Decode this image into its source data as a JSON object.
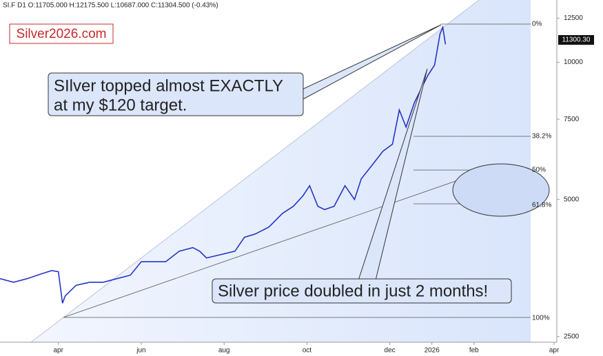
{
  "chart_data": {
    "type": "line",
    "title": "SI.F  D1  O:11705.000 H:12175.500 L:10687.000 C:11304.500 (-0.43%)",
    "logo": "Silver2026.com",
    "price_label": "11300.30",
    "log_scale": true,
    "x": [
      47,
      57,
      67,
      77,
      85,
      90,
      93,
      95,
      103,
      113,
      123,
      133,
      143,
      151,
      159,
      169,
      179,
      189,
      194,
      199,
      209,
      220,
      227,
      235,
      245,
      255,
      263,
      270,
      275,
      281,
      286,
      293,
      301,
      308,
      313,
      321,
      329,
      336,
      341,
      346,
      352,
      357,
      362,
      367,
      371,
      373,
      375
    ],
    "series": [
      {
        "name": "SI.F",
        "color": "#2434c8",
        "values": [
          3350,
          3290,
          3350,
          3430,
          3490,
          3470,
          2960,
          3070,
          3240,
          3290,
          3290,
          3350,
          3410,
          3650,
          3650,
          3650,
          3850,
          3920,
          3850,
          3720,
          3780,
          3850,
          4130,
          4200,
          4350,
          4660,
          4830,
          5090,
          5360,
          4830,
          4750,
          4830,
          5360,
          5000,
          5550,
          5950,
          6380,
          6610,
          7860,
          7210,
          8140,
          8730,
          9360,
          9860,
          11540,
          11940,
          10950
        ]
      }
    ],
    "xlim": [
      47,
      457
    ],
    "xticks": [
      {
        "value": 90,
        "label": "apr"
      },
      {
        "value": 151,
        "label": "jun"
      },
      {
        "value": 212,
        "label": "aug"
      },
      {
        "value": 273,
        "label": "oct"
      },
      {
        "value": 334,
        "label": "dec"
      },
      {
        "value": 365,
        "label": "2026"
      },
      {
        "value": 396,
        "label": "feb"
      },
      {
        "value": 455,
        "label": "apr"
      }
    ],
    "ylim": [
      2430,
      13700
    ],
    "yticks": [
      2500,
      5000,
      7500,
      10000,
      12500
    ],
    "fib_labels": [
      "0%",
      "38.2%",
      "50%",
      "61.8%",
      "100%"
    ],
    "annotations": [
      [
        "SIlver topped almost EXACTLY",
        "at my $120 target."
      ],
      [
        "Silver price doubled in just 2 months!"
      ]
    ]
  }
}
